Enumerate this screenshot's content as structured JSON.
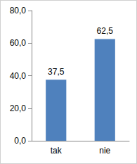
{
  "chart_data": {
    "type": "bar",
    "categories": [
      "tak",
      "nie"
    ],
    "values": [
      37.5,
      62.5
    ],
    "value_labels": [
      "37,5",
      "62,5"
    ],
    "color": "#4f81bd",
    "ylim": [
      0,
      80
    ],
    "yticks": [
      {
        "value": 0,
        "label": "0,0"
      },
      {
        "value": 20,
        "label": "20,0"
      },
      {
        "value": 40,
        "label": "40,0"
      },
      {
        "value": 60,
        "label": "60,0"
      },
      {
        "value": 80,
        "label": "80,0"
      }
    ],
    "grid": false,
    "data_labels": true
  }
}
